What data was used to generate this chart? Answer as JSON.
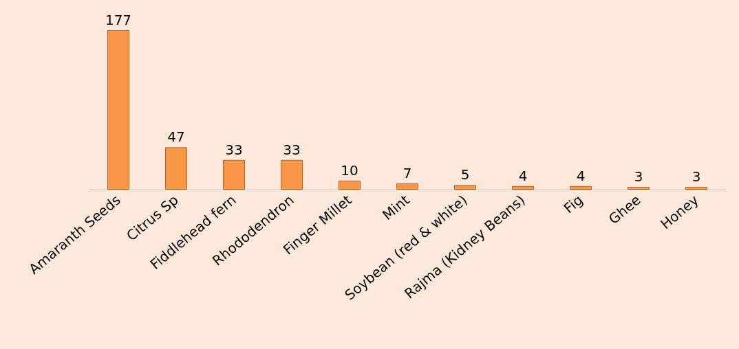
{
  "chart_data": {
    "type": "bar",
    "categories": [
      "Amaranth Seeds",
      "Citrus Sp",
      "Fiddlehead fern",
      "Rhododendron",
      "Finger Millet",
      "Mint",
      "Soybean (red & white)",
      "Rajma (Kidney Beans)",
      "Fig",
      "Ghee",
      "Honey"
    ],
    "values": [
      177,
      47,
      33,
      33,
      10,
      7,
      5,
      4,
      4,
      3,
      3
    ],
    "color": "#f79646",
    "data_labels": true
  }
}
